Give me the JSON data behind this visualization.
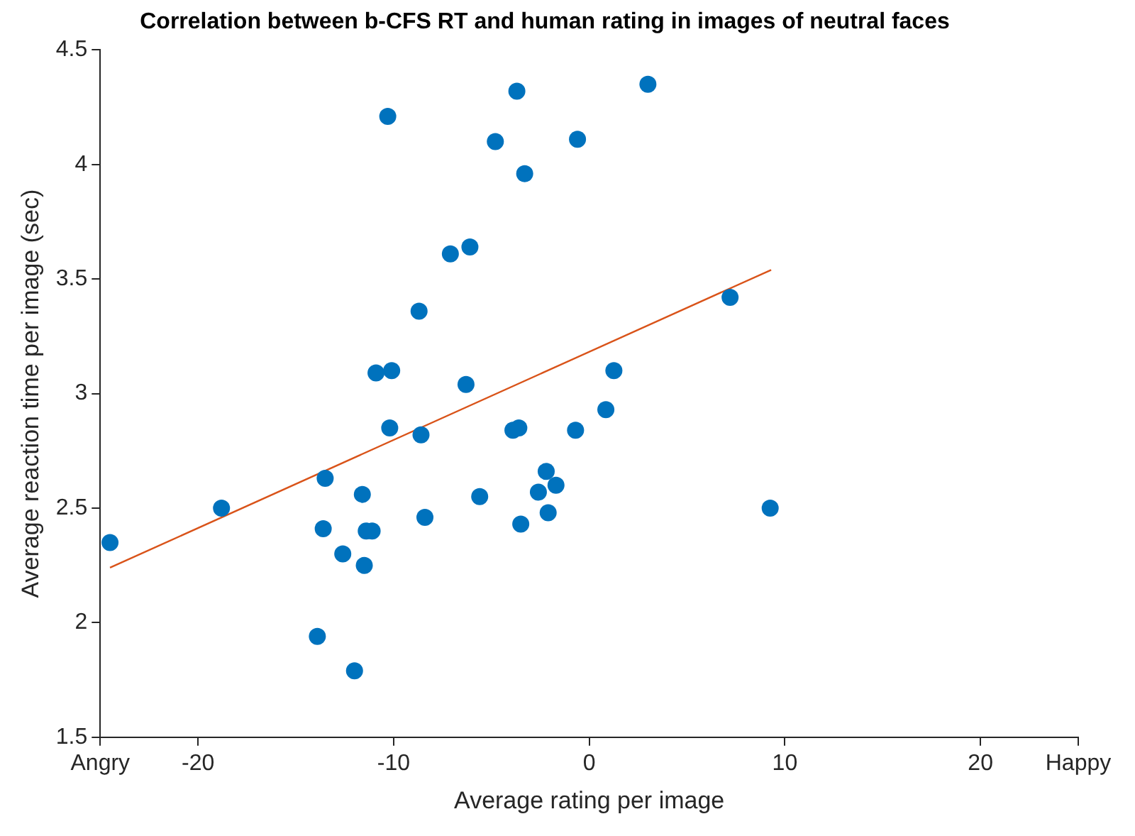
{
  "chart_data": {
    "type": "scatter",
    "title": "Correlation between b-CFS RT and human rating in images of neutral faces",
    "xlabel": "Average rating per image",
    "ylabel": "Average reaction time per image (sec)",
    "xlim": [
      -25,
      25
    ],
    "xticks": [
      {
        "value": -25,
        "label": "Angry"
      },
      -20,
      -10,
      0,
      10,
      20,
      {
        "value": 25,
        "label": "Happy"
      }
    ],
    "ylim": [
      1.5,
      4.5
    ],
    "yticks": [
      1.5,
      2,
      2.5,
      3,
      3.5,
      4,
      4.5
    ],
    "series": [
      {
        "type": "scatter",
        "color": "#0072bd",
        "marker": "circle",
        "x": [
          -10.3,
          -3.7,
          -4.8,
          -0.6,
          -3.3,
          -7.1,
          -6.1,
          -8.7,
          -10.9,
          -10.1,
          -6.3,
          1.26,
          3.0,
          7.2,
          -24.5,
          -18.8,
          -13.5,
          -11.6,
          -13.6,
          -11.4,
          -11.1,
          -12.6,
          -11.5,
          -13.9,
          -12.0,
          -10.2,
          -8.6,
          -8.4,
          -5.6,
          -3.9,
          -3.6,
          -0.7,
          0.85,
          -2.2,
          -1.7,
          -2.6,
          -2.1,
          -3.5,
          9.25
        ],
        "values": [
          4.21,
          4.32,
          4.1,
          4.11,
          3.96,
          3.61,
          3.64,
          3.36,
          3.09,
          3.1,
          3.04,
          3.1,
          4.35,
          3.42,
          2.35,
          2.5,
          2.63,
          2.56,
          2.41,
          2.4,
          2.4,
          2.3,
          2.25,
          1.94,
          1.79,
          2.85,
          2.82,
          2.46,
          2.55,
          2.84,
          2.85,
          2.84,
          2.93,
          2.66,
          2.6,
          2.57,
          2.48,
          2.43,
          2.5
        ]
      },
      {
        "type": "line",
        "color": "#d95319",
        "marker": "none",
        "x": [
          -24.5,
          9.3
        ],
        "values": [
          2.24,
          3.54
        ]
      }
    ]
  }
}
